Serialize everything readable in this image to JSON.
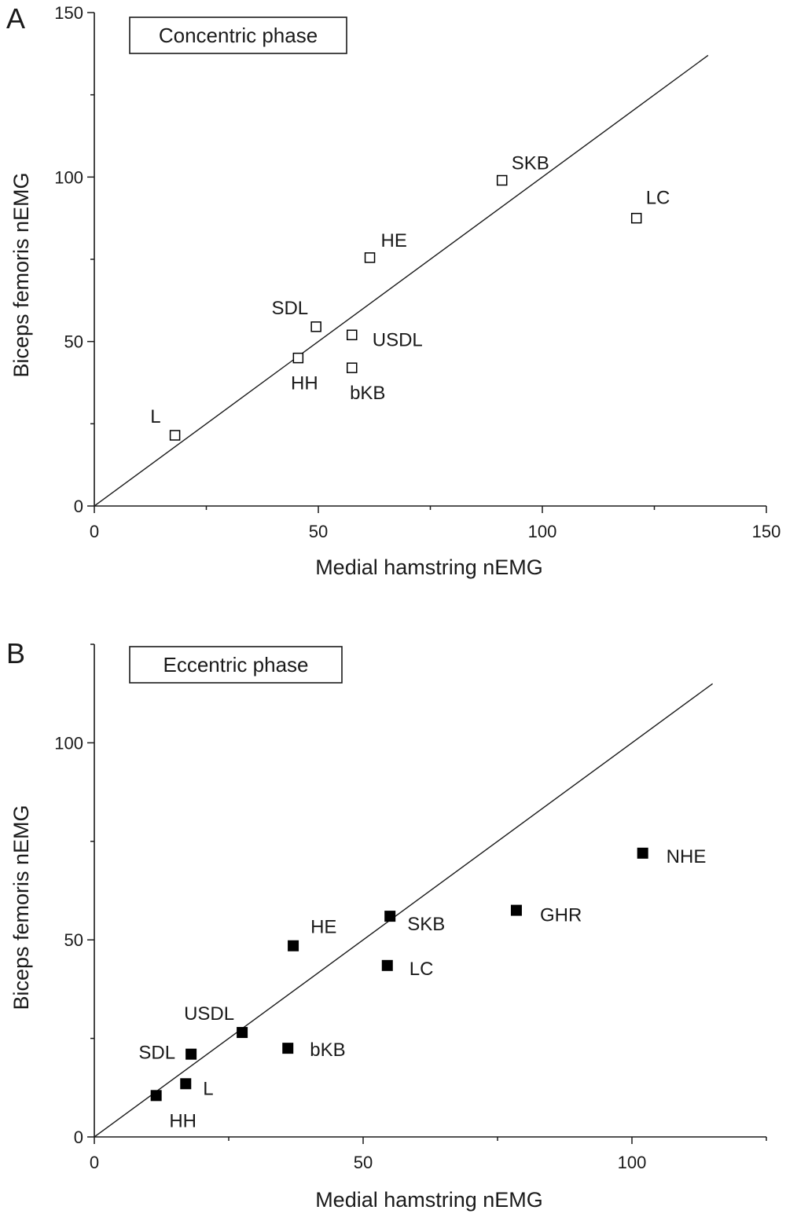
{
  "chart_data": [
    {
      "panel_letter": "A",
      "type": "scatter",
      "title": "Concentric phase",
      "xlabel": "Medial hamstring nEMG",
      "ylabel": "Biceps femoris nEMG",
      "xlim": [
        0,
        150
      ],
      "ylim": [
        0,
        150
      ],
      "xticks": [
        0,
        50,
        100,
        150
      ],
      "yticks": [
        0,
        50,
        100,
        150
      ],
      "marker": "open-square",
      "points": [
        {
          "label": "L",
          "x": 18,
          "y": 21.5
        },
        {
          "label": "HH",
          "x": 45.5,
          "y": 45
        },
        {
          "label": "SDL",
          "x": 49.5,
          "y": 54.5
        },
        {
          "label": "USDL",
          "x": 57.5,
          "y": 52
        },
        {
          "label": "bKB",
          "x": 57.5,
          "y": 42
        },
        {
          "label": "HE",
          "x": 61.5,
          "y": 75.5
        },
        {
          "label": "SKB",
          "x": 91,
          "y": 99
        },
        {
          "label": "LC",
          "x": 121,
          "y": 87.5
        }
      ],
      "line": {
        "x": [
          0,
          137
        ],
        "y": [
          0,
          137
        ]
      },
      "grid": false
    },
    {
      "panel_letter": "B",
      "type": "scatter",
      "title": "Eccentric phase",
      "xlabel": "Medial hamstring nEMG",
      "ylabel": "Biceps femoris nEMG",
      "xlim": [
        0,
        125
      ],
      "ylim": [
        0,
        125
      ],
      "xticks": [
        0,
        50,
        100
      ],
      "yticks": [
        0,
        50,
        100
      ],
      "marker": "filled-square",
      "points": [
        {
          "label": "HH",
          "x": 11.5,
          "y": 10.5
        },
        {
          "label": "L",
          "x": 17,
          "y": 13.5
        },
        {
          "label": "SDL",
          "x": 18,
          "y": 21
        },
        {
          "label": "USDL",
          "x": 27.5,
          "y": 26.5
        },
        {
          "label": "bKB",
          "x": 36,
          "y": 22.5
        },
        {
          "label": "HE",
          "x": 37,
          "y": 48.5
        },
        {
          "label": "LC",
          "x": 54.5,
          "y": 43.5
        },
        {
          "label": "SKB",
          "x": 55,
          "y": 56
        },
        {
          "label": "GHR",
          "x": 78.5,
          "y": 57.5
        },
        {
          "label": "NHE",
          "x": 102,
          "y": 72
        }
      ],
      "line": {
        "x": [
          0,
          115
        ],
        "y": [
          0,
          115
        ]
      },
      "grid": false
    }
  ]
}
